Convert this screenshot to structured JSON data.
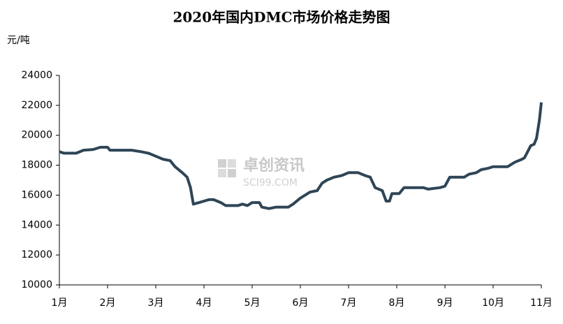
{
  "chart_data": {
    "type": "line",
    "title": "2020年国内DMC市场价格走势图",
    "y_label": "元/吨",
    "watermark": "卓创资讯",
    "watermark_sub": "SCI99.COM",
    "x": [
      1.0,
      1.1,
      1.35,
      1.5,
      1.7,
      1.85,
      2.0,
      2.05,
      2.5,
      2.7,
      2.85,
      3.0,
      3.15,
      3.3,
      3.4,
      3.55,
      3.65,
      3.72,
      3.78,
      3.9,
      4.0,
      4.1,
      4.2,
      4.35,
      4.45,
      4.7,
      4.8,
      4.9,
      5.0,
      5.15,
      5.2,
      5.35,
      5.5,
      5.75,
      5.85,
      6.0,
      6.1,
      6.2,
      6.35,
      6.45,
      6.55,
      6.7,
      6.85,
      7.0,
      7.2,
      7.35,
      7.45,
      7.55,
      7.7,
      7.78,
      7.85,
      7.9,
      8.05,
      8.15,
      8.3,
      8.55,
      8.65,
      8.9,
      9.0,
      9.1,
      9.4,
      9.5,
      9.65,
      9.75,
      9.9,
      10.0,
      10.3,
      10.45,
      10.6,
      10.65,
      10.78,
      10.85,
      10.9,
      10.96,
      11.0
    ],
    "series": [
      {
        "name": "DMC",
        "color": "#2e4556",
        "values": [
          18900,
          18800,
          18800,
          19000,
          19050,
          19200,
          19200,
          19000,
          19000,
          18900,
          18800,
          18600,
          18400,
          18300,
          17900,
          17500,
          17200,
          16500,
          15400,
          15500,
          15600,
          15700,
          15700,
          15500,
          15300,
          15300,
          15400,
          15300,
          15500,
          15500,
          15200,
          15100,
          15200,
          15200,
          15400,
          15800,
          16000,
          16200,
          16300,
          16800,
          17000,
          17200,
          17300,
          17500,
          17500,
          17300,
          17200,
          16500,
          16300,
          15600,
          15600,
          16100,
          16100,
          16500,
          16500,
          16500,
          16400,
          16500,
          16600,
          17200,
          17200,
          17400,
          17500,
          17700,
          17800,
          17900,
          17900,
          18200,
          18400,
          18500,
          19300,
          19400,
          19800,
          21000,
          22200
        ]
      }
    ],
    "xlim": [
      1,
      11
    ],
    "xticks": [
      {
        "value": 1,
        "label": "1月"
      },
      {
        "value": 2,
        "label": "2月"
      },
      {
        "value": 3,
        "label": "3月"
      },
      {
        "value": 4,
        "label": "4月"
      },
      {
        "value": 5,
        "label": "5月"
      },
      {
        "value": 6,
        "label": "6月"
      },
      {
        "value": 7,
        "label": "7月"
      },
      {
        "value": 8,
        "label": "8月"
      },
      {
        "value": 9,
        "label": "9月"
      },
      {
        "value": 10,
        "label": "10月"
      },
      {
        "value": 11,
        "label": "11月"
      }
    ],
    "ylim": [
      10000,
      24000
    ],
    "yticks": [
      10000,
      12000,
      14000,
      16000,
      18000,
      20000,
      22000,
      24000
    ],
    "grid": false
  }
}
